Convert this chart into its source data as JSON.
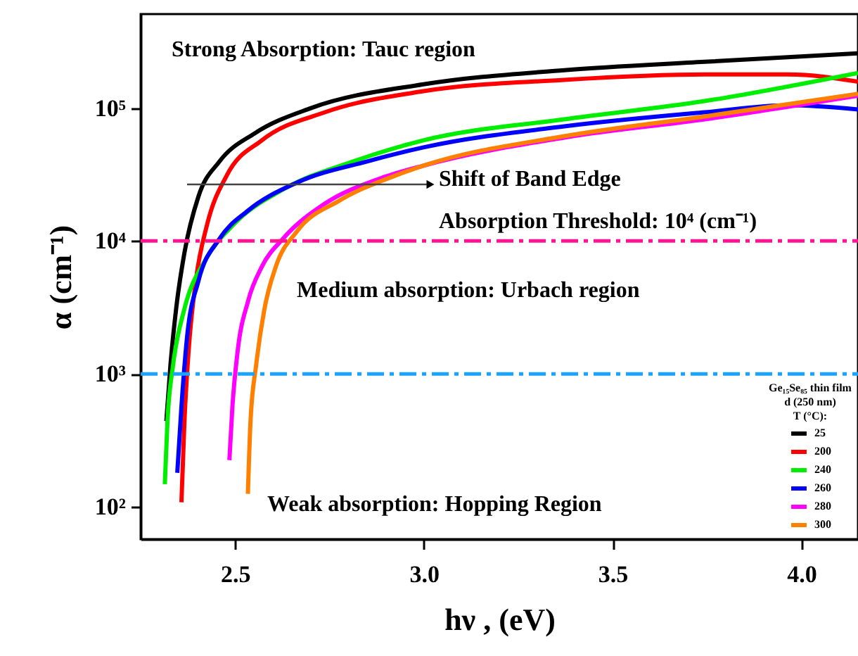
{
  "chart_data": {
    "type": "line",
    "xlabel": "hν , (eV)",
    "ylabel": "α (cm⁻¹)",
    "legend_title": "Ge₁₅Se₈₅ thin film\nd (250 nm)\nT (°C):",
    "log": "y",
    "xlim": [
      2.25,
      4.15
    ],
    "ylim": [
      57,
      510000
    ],
    "xticks": [
      2.5,
      {
        "value": 3,
        "label": "3.0"
      },
      3.5,
      {
        "value": 4,
        "label": "4.0"
      }
    ],
    "yticks": [
      {
        "value": 100,
        "label": "10²"
      },
      {
        "value": 1000,
        "label": "10³"
      },
      {
        "value": 10000,
        "label": "10⁴"
      },
      {
        "value": 100000,
        "label": "10⁵"
      }
    ],
    "grid": false,
    "legend": "bottom right",
    "marker": "none",
    "line_style": "solid",
    "series": [
      {
        "name": "25",
        "color": "#000000",
        "x": [
          2.318,
          2.329,
          2.344,
          2.366,
          2.403,
          2.459,
          2.552,
          2.701,
          2.999,
          3.372,
          3.744,
          4.15
        ],
        "values": [
          441,
          1170,
          3090,
          8170,
          21600,
          39700,
          64600,
          100000,
          151000,
          193000,
          223000,
          258000
        ]
      },
      {
        "name": "200",
        "color": "#ff0000",
        "x": [
          2.358,
          2.366,
          2.377,
          2.396,
          2.426,
          2.478,
          2.571,
          2.738,
          2.999,
          3.372,
          3.744,
          3.967,
          4.15
        ],
        "values": [
          108,
          440,
          1490,
          5000,
          13300,
          31100,
          57200,
          93000,
          134000,
          163000,
          179000,
          179000,
          158000
        ]
      },
      {
        "name": "240",
        "color": "#00ee00",
        "x": [
          2.314,
          2.321,
          2.336,
          2.366,
          2.422,
          2.496,
          2.627,
          2.813,
          2.999,
          3.372,
          3.744,
          4.15
        ],
        "values": [
          148,
          441,
          1170,
          3090,
          7240,
          13300,
          24400,
          39700,
          57200,
          82400,
          113000,
          184000
        ]
      },
      {
        "name": "260",
        "color": "#0000ff",
        "x": [
          2.347,
          2.358,
          2.373,
          2.403,
          2.459,
          2.534,
          2.664,
          2.85,
          2.999,
          3.372,
          3.744,
          3.967,
          4.15
        ],
        "values": [
          180,
          564,
          1900,
          5000,
          10400,
          16900,
          27500,
          39700,
          50600,
          72900,
          93000,
          105000,
          97600
        ]
      },
      {
        "name": "280",
        "color": "#ff00ff",
        "x": [
          2.485,
          2.493,
          2.507,
          2.534,
          2.571,
          2.627,
          2.738,
          2.887,
          2.999,
          3.372,
          3.744,
          4.15
        ],
        "values": [
          224,
          564,
          1490,
          3490,
          6410,
          10400,
          19100,
          29700,
          36900,
          60000,
          82400,
          124000
        ]
      },
      {
        "name": "300",
        "color": "#ff8000",
        "x": [
          2.534,
          2.541,
          2.556,
          2.578,
          2.608,
          2.664,
          2.776,
          2.925,
          2.999,
          3.372,
          3.744,
          4.15
        ],
        "values": [
          125,
          441,
          1170,
          3090,
          6410,
          11800,
          20100,
          31100,
          36900,
          61500,
          86500,
          128000
        ]
      }
    ],
    "ref_lines": [
      {
        "axis": "y",
        "value": 10000,
        "color": "#ff1493",
        "line_style": "dashdot"
      },
      {
        "axis": "y",
        "value": 1000,
        "color": "#1aa3ff",
        "line_style": "dashdot"
      }
    ],
    "annotations": [
      "Strong Absorption: Tauc region",
      "Shift of Band Edge",
      "Absorption Threshold: 10⁴ (cm⁻¹)",
      "Medium absorption: Urbach region",
      "Weak absorption: Hopping Region"
    ]
  }
}
